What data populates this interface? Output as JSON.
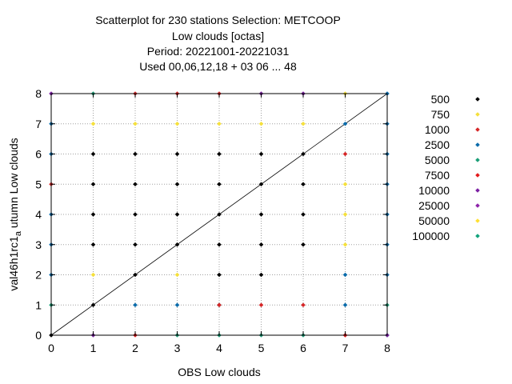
{
  "chart_data": {
    "type": "scatter",
    "title_lines": [
      "Scatterplot for  230 stations Selection: METCOOP",
      "Low clouds [octas]",
      "Period: 20221001-20221031",
      "Used  00,06,12,18  + 03 06 ... 48"
    ],
    "xlabel": "OBS Low clouds",
    "ylabel": "val46h1rc1_a utumn Low clouds",
    "xlim": [
      0,
      8
    ],
    "ylim": [
      0,
      8
    ],
    "xticks": [
      0,
      1,
      2,
      3,
      4,
      5,
      6,
      7,
      8
    ],
    "yticks": [
      0,
      1,
      2,
      3,
      4,
      5,
      6,
      7,
      8
    ],
    "grid": true,
    "legend_position": "right",
    "diagonal_line": true,
    "series": [
      {
        "name": "500",
        "color": "#000000",
        "points": [
          [
            0,
            0
          ],
          [
            1,
            1
          ],
          [
            2,
            2
          ],
          [
            3,
            3
          ],
          [
            4,
            4
          ],
          [
            5,
            5
          ],
          [
            6,
            6
          ],
          [
            1,
            3
          ],
          [
            1,
            4
          ],
          [
            1,
            5
          ],
          [
            1,
            6
          ],
          [
            2,
            3
          ],
          [
            2,
            4
          ],
          [
            2,
            5
          ],
          [
            2,
            6
          ],
          [
            3,
            4
          ],
          [
            3,
            5
          ],
          [
            3,
            6
          ],
          [
            4,
            1
          ],
          [
            4,
            2
          ],
          [
            4,
            3
          ],
          [
            4,
            5
          ],
          [
            4,
            6
          ],
          [
            5,
            2
          ],
          [
            5,
            3
          ],
          [
            5,
            4
          ],
          [
            5,
            6
          ],
          [
            6,
            3
          ],
          [
            6,
            4
          ],
          [
            6,
            5
          ]
        ]
      },
      {
        "name": "750",
        "color": "#f5e03c",
        "points": [
          [
            1,
            2
          ],
          [
            1,
            7
          ],
          [
            2,
            7
          ],
          [
            3,
            7
          ],
          [
            4,
            7
          ],
          [
            5,
            7
          ],
          [
            6,
            7
          ],
          [
            3,
            2
          ],
          [
            7,
            3
          ],
          [
            7,
            4
          ],
          [
            7,
            5
          ],
          [
            7,
            8
          ]
        ]
      },
      {
        "name": "1000",
        "color": "#d62728",
        "points": [
          [
            2,
            8
          ],
          [
            3,
            8
          ],
          [
            4,
            8
          ],
          [
            4,
            1
          ],
          [
            5,
            1
          ],
          [
            6,
            1
          ],
          [
            7,
            0
          ],
          [
            7,
            6
          ],
          [
            0,
            5
          ]
        ]
      },
      {
        "name": "2500",
        "color": "#0b6cab",
        "points": [
          [
            0,
            7
          ],
          [
            0,
            6
          ],
          [
            0,
            4
          ],
          [
            0,
            3
          ],
          [
            0,
            2
          ],
          [
            2,
            1
          ],
          [
            3,
            1
          ],
          [
            7,
            1
          ],
          [
            7,
            2
          ],
          [
            7,
            7
          ],
          [
            8,
            2
          ],
          [
            8,
            3
          ],
          [
            8,
            4
          ],
          [
            8,
            5
          ],
          [
            8,
            6
          ],
          [
            8,
            7
          ],
          [
            8,
            8
          ]
        ]
      },
      {
        "name": "5000",
        "color": "#1b9e77",
        "points": [
          [
            1,
            8
          ],
          [
            0,
            1
          ],
          [
            8,
            1
          ],
          [
            3,
            0
          ],
          [
            4,
            0
          ],
          [
            5,
            0
          ],
          [
            6,
            0
          ],
          [
            8,
            0
          ]
        ]
      },
      {
        "name": "7500",
        "color": "#e31a1c",
        "points": [
          [
            2,
            0
          ],
          [
            7,
            0
          ]
        ]
      },
      {
        "name": "10000",
        "color": "#7b1fa2",
        "points": [
          [
            0,
            8
          ],
          [
            1,
            0
          ],
          [
            5,
            8
          ],
          [
            6,
            8
          ],
          [
            8,
            0
          ]
        ]
      },
      {
        "name": "25000",
        "color": "#8e24aa",
        "points": []
      },
      {
        "name": "50000",
        "color": "#ffe033",
        "points": []
      },
      {
        "name": "100000",
        "color": "#12a37c",
        "points": []
      }
    ]
  }
}
